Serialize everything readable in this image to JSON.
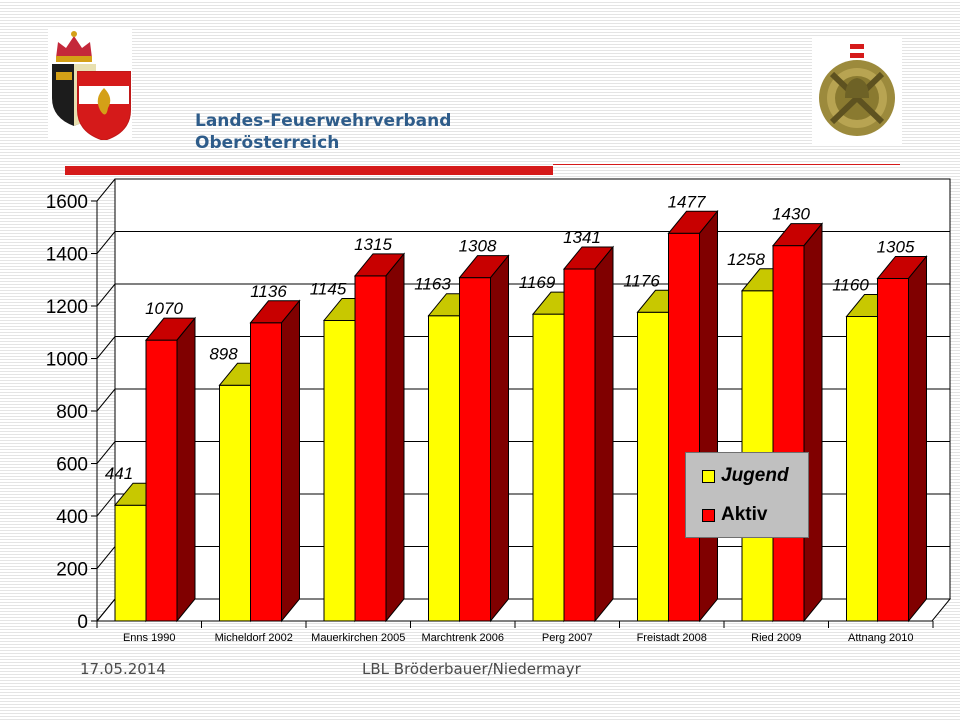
{
  "header": {
    "org_line1": "Landes-Feuerwehrverband",
    "org_line2": "Oberösterreich",
    "logo_left_icon": "upper-austria-fire-brigade-coat-of-arms",
    "logo_right_icon": "fire-brigade-badge-emblem"
  },
  "colors": {
    "accent_red": "#d51a1a",
    "title_blue": "#2e5c8a",
    "jugend_front": "#ffff00",
    "jugend_side": "#9b9b00",
    "aktiv_front": "#ff0000",
    "aktiv_side": "#800000"
  },
  "chart_data": {
    "type": "bar",
    "categories": [
      "Enns 1990",
      "Micheldorf 2002",
      "Mauerkirchen 2005",
      "Marchtrenk 2006",
      "Perg 2007",
      "Freistadt 2008",
      "Ried 2009",
      "Attnang 2010"
    ],
    "series": [
      {
        "name": "Jugend",
        "values": [
          441,
          898,
          1145,
          1163,
          1169,
          1176,
          1258,
          1160
        ]
      },
      {
        "name": "Aktiv",
        "values": [
          1070,
          1136,
          1315,
          1308,
          1341,
          1477,
          1430,
          1305
        ]
      }
    ],
    "ylim": [
      0,
      1600
    ],
    "yticks": [
      "0",
      "200",
      "400",
      "600",
      "800",
      "1000",
      "1200",
      "1400",
      "1600"
    ],
    "grid": true,
    "legend_position": "bottom-right",
    "style": "3d-clustered"
  },
  "footer": {
    "date": "17.05.2014",
    "author": "LBL Bröderbauer/Niedermayr"
  }
}
